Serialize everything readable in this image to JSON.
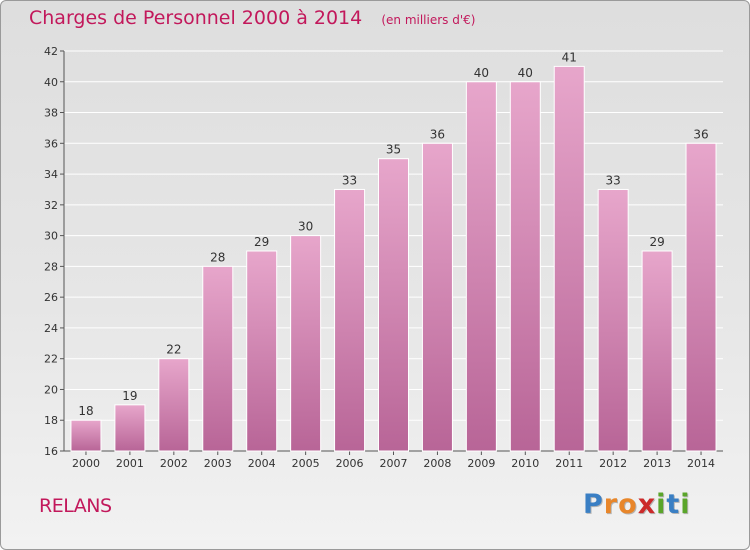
{
  "chart_data": {
    "type": "bar",
    "title": "Charges de Personnel 2000 à 2014",
    "subtitle": "(en milliers d'€)",
    "categories": [
      "2000",
      "2001",
      "2002",
      "2003",
      "2004",
      "2005",
      "2006",
      "2007",
      "2008",
      "2009",
      "2010",
      "2011",
      "2012",
      "2013",
      "2014"
    ],
    "values": [
      18,
      19,
      22,
      28,
      29,
      30,
      33,
      35,
      36,
      40,
      40,
      41,
      33,
      29,
      36
    ],
    "ylim": [
      16,
      42
    ],
    "yticks": [
      16,
      18,
      20,
      22,
      24,
      26,
      28,
      30,
      32,
      34,
      36,
      38,
      40,
      42
    ],
    "grid": true,
    "bar_color": "#d97aab",
    "show_data_labels": true
  },
  "footer": {
    "commune": "RELANS"
  },
  "logo": {
    "text": "Proxiti",
    "letter_colors": [
      "#3a7fc4",
      "#e8862a",
      "#e8862a",
      "#cc2a2a",
      "#5aa52a",
      "#3a7fc4",
      "#5aa52a"
    ]
  },
  "colors": {
    "title": "#c2185b",
    "axis_text": "#333333",
    "grid": "#ffffff"
  }
}
